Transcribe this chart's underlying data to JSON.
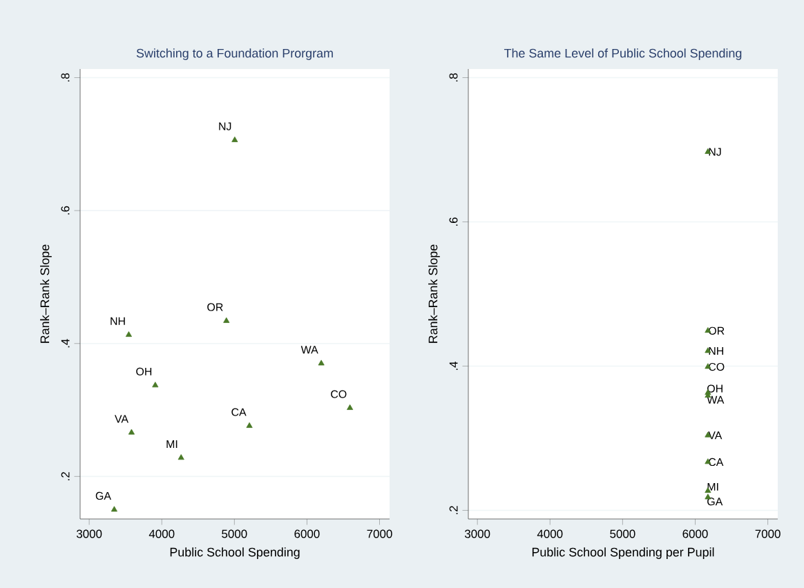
{
  "chart_data": [
    {
      "type": "scatter",
      "title": "Switching to a Foundation Prorgram",
      "xlabel": "Public School Spending",
      "ylabel": "Rank–Rank Slope",
      "x": [
        5005,
        4890,
        3545,
        3910,
        6197,
        6592,
        5207,
        3583,
        4266,
        3345
      ],
      "values": [
        0.706,
        0.434,
        0.413,
        0.337,
        0.37,
        0.303,
        0.276,
        0.266,
        0.228,
        0.15
      ],
      "color": "#4a7a28",
      "marker": "triangle",
      "grid": "y",
      "xlim": [
        2875,
        7138
      ],
      "ylim": [
        0.136,
        0.813
      ],
      "xticks": [
        3000,
        4000,
        5000,
        6000,
        7000
      ],
      "yticks": [
        {
          "value": 0.2,
          "label": ".2"
        },
        {
          "value": 0.4,
          "label": ".4"
        },
        {
          "value": 0.6,
          "label": ".6"
        },
        {
          "value": 0.8,
          "label": ".8"
        }
      ],
      "annotations": [
        {
          "text": "NJ",
          "x": 5005,
          "y": 0.706
        },
        {
          "text": "OR",
          "x": 4890,
          "y": 0.434
        },
        {
          "text": "NH",
          "x": 3545,
          "y": 0.413
        },
        {
          "text": "OH",
          "x": 3910,
          "y": 0.337
        },
        {
          "text": "WA",
          "x": 6197,
          "y": 0.37
        },
        {
          "text": "CO",
          "x": 6592,
          "y": 0.303
        },
        {
          "text": "CA",
          "x": 5207,
          "y": 0.276
        },
        {
          "text": "VA",
          "x": 3583,
          "y": 0.266
        },
        {
          "text": "MI",
          "x": 4266,
          "y": 0.228
        },
        {
          "text": "GA",
          "x": 3345,
          "y": 0.15
        }
      ]
    },
    {
      "type": "scatter",
      "title": "The Same Level of Public School Spending",
      "xlabel": "Public School Spending per Pupil",
      "ylabel": "Rank–Rank Slope",
      "x": [
        6175,
        6175,
        6175,
        6175,
        6175,
        6175,
        6175,
        6175,
        6175,
        6175
      ],
      "values": [
        0.697,
        0.449,
        0.421,
        0.399,
        0.363,
        0.359,
        0.304,
        0.267,
        0.227,
        0.218
      ],
      "color": "#4a7a28",
      "marker": "triangle",
      "grid": "y",
      "xlim": [
        2875,
        7137
      ],
      "ylim": [
        0.188,
        0.812
      ],
      "xticks": [
        3000,
        4000,
        5000,
        6000,
        7000
      ],
      "yticks": [
        {
          "value": 0.2,
          "label": ".2"
        },
        {
          "value": 0.4,
          "label": ".4"
        },
        {
          "value": 0.6,
          "label": ".6"
        },
        {
          "value": 0.8,
          "label": ".8"
        }
      ],
      "annotations": [
        {
          "text": "NJ",
          "x": 6175,
          "y": 0.697
        },
        {
          "text": "OR",
          "x": 6175,
          "y": 0.449
        },
        {
          "text": "NH",
          "x": 6175,
          "y": 0.421
        },
        {
          "text": "CO",
          "x": 6175,
          "y": 0.399
        },
        {
          "text": "OH",
          "x": 6175,
          "y": 0.363
        },
        {
          "text": "WA",
          "x": 6175,
          "y": 0.359
        },
        {
          "text": "VA",
          "x": 6175,
          "y": 0.304
        },
        {
          "text": "CA",
          "x": 6175,
          "y": 0.267
        },
        {
          "text": "MI",
          "x": 6175,
          "y": 0.227
        },
        {
          "text": "GA",
          "x": 6175,
          "y": 0.218
        }
      ]
    }
  ]
}
